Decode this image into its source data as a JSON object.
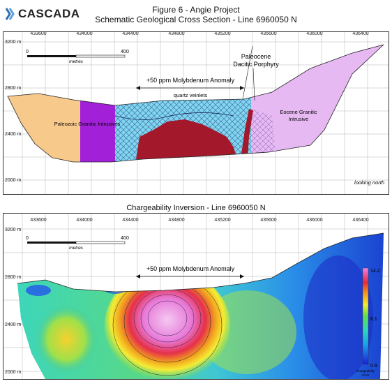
{
  "brand": {
    "name": "CASCADA"
  },
  "figure": {
    "title_line1": "Figure 6 - Angie Project",
    "title_line2": "Schematic Geological Cross Section - Line 6960050 N",
    "lower_title": "Chargeability Inversion - Line 6960050 N"
  },
  "axes": {
    "x_ticks": [
      "433600",
      "434000",
      "434400",
      "434800",
      "435200",
      "435600",
      "436000",
      "436400"
    ],
    "y_ticks": [
      "3200 m",
      "2800 m",
      "2400 m",
      "2000 m"
    ]
  },
  "scale_bar": {
    "start": "0",
    "end": "400",
    "unit": "metres"
  },
  "geology": {
    "moly_anomaly": "+50 ppm Molybdenum Anomaly",
    "quartz": "quartz veinlets",
    "paleocene_line1": "Paleocene",
    "paleocene_line2": "Dacitic Porphyry",
    "paleozoic": "Paleozoic Granitic Intrusives",
    "eocene_line1": "Eocene Granitic",
    "eocene_line2": "Intrusive",
    "looking": "looking north",
    "colors": {
      "paleozoic_tan": "#f7c98b",
      "paleozoic_purple": "#a120d8",
      "cyan": "#7fd6ee",
      "porphyry": "#a3192b",
      "eocene": "#e6b9f2"
    }
  },
  "chargeability": {
    "moly_anomaly": "+50 ppm Molybdenum Anomaly",
    "legend_max": "14.2",
    "legend_mid": "8.1",
    "legend_min": "0.9",
    "legend_label": "Chargeability",
    "legend_unit": "mV/V"
  }
}
